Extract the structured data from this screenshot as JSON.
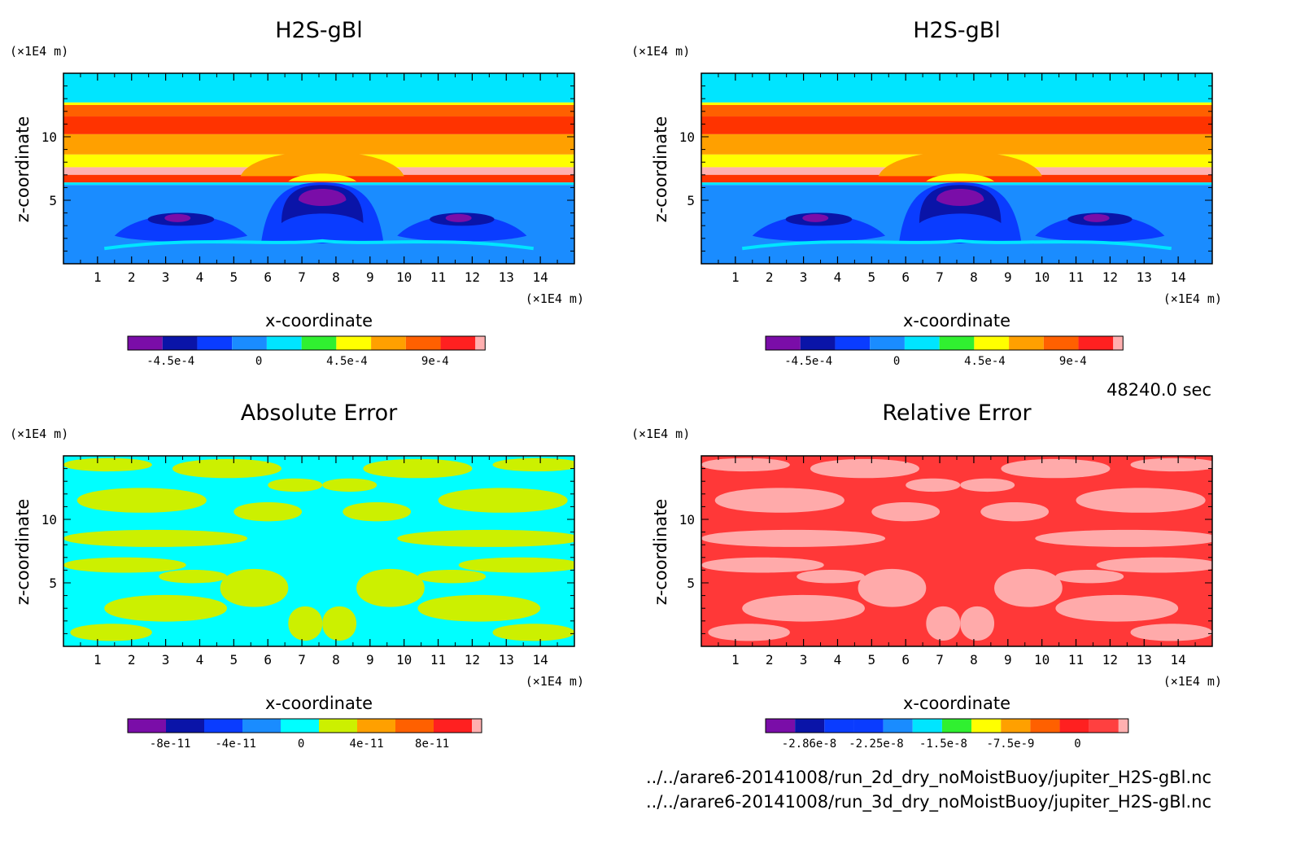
{
  "time_label": "48240.0 sec",
  "files": [
    "../../arare6-20141008/run_2d_dry_noMoistBuoy/jupiter_H2S-gBl.nc",
    "../../arare6-20141008/run_3d_dry_noMoistBuoy/jupiter_H2S-gBl.nc"
  ],
  "chart_data": [
    {
      "type": "heatmap",
      "title": "H2S-gBl",
      "xlabel": "x-coordinate",
      "ylabel": "z-coordinate",
      "x_unit": "(×1E4 m)",
      "y_unit": "(×1E4 m)",
      "xlim": [
        0,
        15
      ],
      "ylim": [
        0,
        15
      ],
      "xticks": [
        "1",
        "2",
        "3",
        "4",
        "5",
        "6",
        "7",
        "8",
        "9",
        "10",
        "11",
        "12",
        "13",
        "14"
      ],
      "yticks": [
        "5",
        "10"
      ],
      "colorbar": {
        "levels": [
          "-4.5e-4",
          "0",
          "4.5e-4",
          "9e-4"
        ],
        "colors": [
          "#7a0da8",
          "#0a14a8",
          "#0a3cff",
          "#1a8cff",
          "#00e5ff",
          "#30f030",
          "#ffff00",
          "#ffa000",
          "#ff6000",
          "#ff2020",
          "#ffb0b0"
        ]
      },
      "bands": [
        {
          "z_range": [
            12.7,
            15.0
          ],
          "color": "#00e5ff"
        },
        {
          "z_range": [
            12.5,
            12.7
          ],
          "color": "#ffff00"
        },
        {
          "z_range": [
            11.6,
            12.5
          ],
          "color": "#ff6000"
        },
        {
          "z_range": [
            10.2,
            11.6
          ],
          "color": "#ff3300"
        },
        {
          "z_range": [
            8.6,
            10.2
          ],
          "color": "#ffa000"
        },
        {
          "z_range": [
            7.6,
            8.6
          ],
          "color": "#ffff00"
        },
        {
          "z_range": [
            7.0,
            7.6
          ],
          "color": "#ffb0b0"
        },
        {
          "z_range": [
            6.4,
            7.0
          ],
          "color": "#ff3300"
        },
        {
          "z_range": [
            6.2,
            6.4
          ],
          "color": "#00e5ff"
        },
        {
          "z_range": [
            0.0,
            6.2
          ],
          "color": "#1a8cff"
        }
      ]
    },
    {
      "type": "heatmap",
      "title": "H2S-gBl",
      "xlabel": "x-coordinate",
      "ylabel": "z-coordinate",
      "x_unit": "(×1E4 m)",
      "y_unit": "(×1E4 m)",
      "xlim": [
        0,
        15
      ],
      "ylim": [
        0,
        15
      ],
      "xticks": [
        "1",
        "2",
        "3",
        "4",
        "5",
        "6",
        "7",
        "8",
        "9",
        "10",
        "11",
        "12",
        "13",
        "14"
      ],
      "yticks": [
        "5",
        "10"
      ],
      "colorbar": {
        "levels": [
          "-4.5e-4",
          "0",
          "4.5e-4",
          "9e-4"
        ],
        "colors": [
          "#7a0da8",
          "#0a14a8",
          "#0a3cff",
          "#1a8cff",
          "#00e5ff",
          "#30f030",
          "#ffff00",
          "#ffa000",
          "#ff6000",
          "#ff2020",
          "#ffb0b0"
        ]
      },
      "bands": [
        {
          "z_range": [
            12.7,
            15.0
          ],
          "color": "#00e5ff"
        },
        {
          "z_range": [
            12.5,
            12.7
          ],
          "color": "#ffff00"
        },
        {
          "z_range": [
            11.6,
            12.5
          ],
          "color": "#ff6000"
        },
        {
          "z_range": [
            10.2,
            11.6
          ],
          "color": "#ff3300"
        },
        {
          "z_range": [
            8.6,
            10.2
          ],
          "color": "#ffa000"
        },
        {
          "z_range": [
            7.6,
            8.6
          ],
          "color": "#ffff00"
        },
        {
          "z_range": [
            7.0,
            7.6
          ],
          "color": "#ffb0b0"
        },
        {
          "z_range": [
            6.4,
            7.0
          ],
          "color": "#ff3300"
        },
        {
          "z_range": [
            6.2,
            6.4
          ],
          "color": "#00e5ff"
        },
        {
          "z_range": [
            0.0,
            6.2
          ],
          "color": "#1a8cff"
        }
      ]
    },
    {
      "type": "heatmap",
      "title": "Absolute Error",
      "xlabel": "x-coordinate",
      "ylabel": "z-coordinate",
      "x_unit": "(×1E4 m)",
      "y_unit": "(×1E4 m)",
      "xlim": [
        0,
        15
      ],
      "ylim": [
        0,
        15
      ],
      "xticks": [
        "1",
        "2",
        "3",
        "4",
        "5",
        "6",
        "7",
        "8",
        "9",
        "10",
        "11",
        "12",
        "13",
        "14"
      ],
      "yticks": [
        "5",
        "10"
      ],
      "colorbar": {
        "levels": [
          "-8e-11",
          "-4e-11",
          "0",
          "4e-11",
          "8e-11"
        ],
        "colors": [
          "#7a0da8",
          "#0a14a8",
          "#0a3cff",
          "#1a8cff",
          "#00ffff",
          "#ccf000",
          "#ffa000",
          "#ff6000",
          "#ff2020",
          "#ffb0b0"
        ]
      },
      "background_color": "#00ffff",
      "patch_color": "#ccf000"
    },
    {
      "type": "heatmap",
      "title": "Relative Error",
      "xlabel": "x-coordinate",
      "ylabel": "z-coordinate",
      "x_unit": "(×1E4 m)",
      "y_unit": "(×1E4 m)",
      "xlim": [
        0,
        15
      ],
      "ylim": [
        0,
        15
      ],
      "xticks": [
        "1",
        "2",
        "3",
        "4",
        "5",
        "6",
        "7",
        "8",
        "9",
        "10",
        "11",
        "12",
        "13",
        "14"
      ],
      "yticks": [
        "5",
        "10"
      ],
      "colorbar": {
        "levels": [
          "-2.86e-8",
          "-2.25e-8",
          "-1.5e-8",
          "-7.5e-9",
          "0"
        ],
        "colors": [
          "#7a0da8",
          "#0a14a8",
          "#0a3cff",
          "#0a3cff",
          "#1a8cff",
          "#00e5ff",
          "#30f030",
          "#ffff00",
          "#ffa000",
          "#ff6000",
          "#ff2020",
          "#ff4040",
          "#ffb0b0"
        ]
      },
      "background_color": "#ff3838",
      "patch_color": "#ffaaaa"
    }
  ]
}
